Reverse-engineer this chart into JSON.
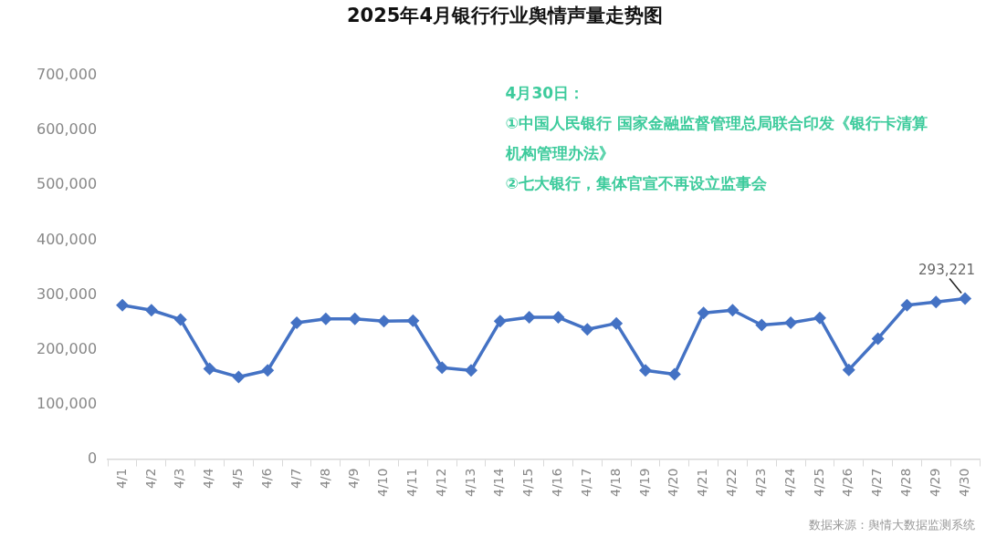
{
  "chart_data": {
    "type": "line",
    "title": "2025年4月银行行业舆情声量走势图",
    "categories": [
      "4/1",
      "4/2",
      "4/3",
      "4/4",
      "4/5",
      "4/6",
      "4/7",
      "4/8",
      "4/9",
      "4/10",
      "4/11",
      "4/12",
      "4/13",
      "4/14",
      "4/15",
      "4/16",
      "4/17",
      "4/18",
      "4/19",
      "4/20",
      "4/21",
      "4/22",
      "4/23",
      "4/24",
      "4/25",
      "4/26",
      "4/27",
      "4/28",
      "4/29",
      "4/30"
    ],
    "values": [
      281000,
      272000,
      255000,
      165000,
      150000,
      162000,
      249000,
      256000,
      256000,
      252000,
      253000,
      167000,
      162000,
      252000,
      259000,
      259000,
      237000,
      248000,
      162000,
      155000,
      267000,
      272000,
      245000,
      249000,
      258000,
      163000,
      220000,
      281000,
      287000,
      293221
    ],
    "value_labels": [
      null,
      null,
      null,
      null,
      null,
      null,
      null,
      null,
      null,
      null,
      null,
      null,
      null,
      null,
      null,
      null,
      null,
      null,
      null,
      null,
      null,
      null,
      null,
      null,
      null,
      null,
      null,
      null,
      null,
      "293,221"
    ],
    "color": "#4472c4",
    "marker": "diamond",
    "line_style": "solid",
    "ylim": [
      0,
      700000
    ],
    "yticks": [
      0,
      {
        "value": 100000,
        "label": "100,000"
      },
      {
        "value": 200000,
        "label": "200,000"
      },
      {
        "value": 300000,
        "label": "300,000"
      },
      {
        "value": 400000,
        "label": "400,000"
      },
      {
        "value": 500000,
        "label": "500,000"
      },
      {
        "value": 600000,
        "label": "600,000"
      },
      {
        "value": 700000,
        "label": "700,000"
      }
    ],
    "annotations": [
      "4月30日：",
      "①中国人民银行 国家金融监督管理总局联合印发《银行卡清算机构管理办法》",
      "②七大银行，集体官宣不再设立监事会",
      "数据来源：舆情大数据监测系统"
    ]
  }
}
